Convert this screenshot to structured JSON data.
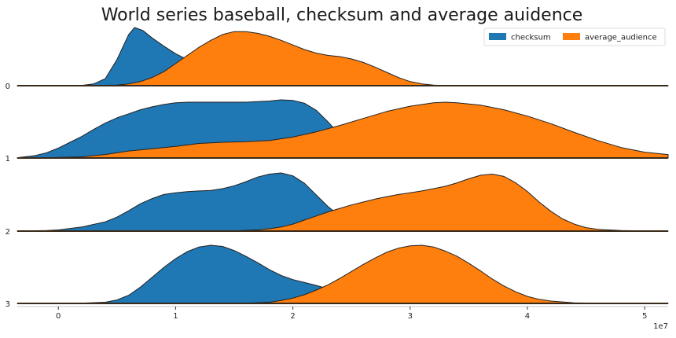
{
  "chart_data": {
    "type": "area",
    "title": "World series baseball, checksum and average auidence",
    "x_ticks": [
      "0",
      "1",
      "2",
      "3",
      "4",
      "5"
    ],
    "x_tick_values": [
      0,
      1,
      2,
      3,
      4,
      5
    ],
    "x_scale_label": "1e7",
    "xlim": [
      -0.35,
      5.2
    ],
    "row_labels": [
      "0",
      "1",
      "2",
      "3"
    ],
    "legend": {
      "placement": "top-right",
      "entries": [
        "checksum",
        "average_audience"
      ]
    },
    "colors": {
      "checksum": "#1f77b4",
      "average_audience": "#ff7f0e",
      "edge": "#222222",
      "baseline": "#3a2a1a"
    },
    "series": [
      {
        "name": "checksum",
        "rows": [
          [
            [
              -0.35,
              0
            ],
            [
              0.2,
              0.005
            ],
            [
              0.3,
              0.03
            ],
            [
              0.4,
              0.12
            ],
            [
              0.5,
              0.45
            ],
            [
              0.6,
              0.88
            ],
            [
              0.65,
              1
            ],
            [
              0.72,
              0.95
            ],
            [
              0.8,
              0.82
            ],
            [
              0.9,
              0.68
            ],
            [
              1.0,
              0.55
            ],
            [
              1.1,
              0.45
            ],
            [
              1.2,
              0.37
            ],
            [
              1.3,
              0.28
            ],
            [
              1.4,
              0.22
            ],
            [
              1.5,
              0.17
            ],
            [
              1.7,
              0.13
            ],
            [
              1.9,
              0.12
            ],
            [
              2.0,
              0.1
            ],
            [
              2.2,
              0.08
            ],
            [
              2.4,
              0.06
            ],
            [
              2.6,
              0.03
            ],
            [
              2.8,
              0.01
            ],
            [
              3.0,
              0
            ],
            [
              5.2,
              0
            ]
          ],
          [
            [
              -0.35,
              0.005
            ],
            [
              -0.2,
              0.04
            ],
            [
              -0.1,
              0.09
            ],
            [
              0,
              0.17
            ],
            [
              0.1,
              0.27
            ],
            [
              0.2,
              0.37
            ],
            [
              0.3,
              0.49
            ],
            [
              0.4,
              0.6
            ],
            [
              0.5,
              0.69
            ],
            [
              0.6,
              0.76
            ],
            [
              0.7,
              0.83
            ],
            [
              0.8,
              0.88
            ],
            [
              0.9,
              0.92
            ],
            [
              1.0,
              0.95
            ],
            [
              1.1,
              0.96
            ],
            [
              1.2,
              0.96
            ],
            [
              1.3,
              0.96
            ],
            [
              1.4,
              0.96
            ],
            [
              1.5,
              0.96
            ],
            [
              1.6,
              0.96
            ],
            [
              1.7,
              0.97
            ],
            [
              1.8,
              0.98
            ],
            [
              1.9,
              1.0
            ],
            [
              2.0,
              0.99
            ],
            [
              2.1,
              0.94
            ],
            [
              2.2,
              0.82
            ],
            [
              2.3,
              0.62
            ],
            [
              2.4,
              0.4
            ],
            [
              2.5,
              0.22
            ],
            [
              2.6,
              0.1
            ],
            [
              2.7,
              0.04
            ],
            [
              2.8,
              0.01
            ],
            [
              2.9,
              0
            ],
            [
              5.2,
              0
            ]
          ],
          [
            [
              -0.35,
              0
            ],
            [
              -0.1,
              0.01
            ],
            [
              0,
              0.02
            ],
            [
              0.2,
              0.07
            ],
            [
              0.4,
              0.16
            ],
            [
              0.5,
              0.24
            ],
            [
              0.6,
              0.35
            ],
            [
              0.7,
              0.47
            ],
            [
              0.8,
              0.56
            ],
            [
              0.9,
              0.63
            ],
            [
              1.0,
              0.66
            ],
            [
              1.1,
              0.68
            ],
            [
              1.2,
              0.69
            ],
            [
              1.3,
              0.7
            ],
            [
              1.4,
              0.73
            ],
            [
              1.5,
              0.78
            ],
            [
              1.6,
              0.85
            ],
            [
              1.7,
              0.93
            ],
            [
              1.8,
              0.98
            ],
            [
              1.9,
              1.0
            ],
            [
              2.0,
              0.95
            ],
            [
              2.1,
              0.82
            ],
            [
              2.2,
              0.62
            ],
            [
              2.3,
              0.42
            ],
            [
              2.4,
              0.26
            ],
            [
              2.5,
              0.14
            ],
            [
              2.6,
              0.06
            ],
            [
              2.7,
              0.02
            ],
            [
              2.8,
              0
            ],
            [
              5.2,
              0
            ]
          ],
          [
            [
              -0.35,
              0
            ],
            [
              0.2,
              0.005
            ],
            [
              0.4,
              0.02
            ],
            [
              0.5,
              0.06
            ],
            [
              0.6,
              0.14
            ],
            [
              0.7,
              0.28
            ],
            [
              0.8,
              0.45
            ],
            [
              0.9,
              0.62
            ],
            [
              1.0,
              0.77
            ],
            [
              1.1,
              0.89
            ],
            [
              1.2,
              0.97
            ],
            [
              1.3,
              1.0
            ],
            [
              1.4,
              0.98
            ],
            [
              1.5,
              0.91
            ],
            [
              1.6,
              0.81
            ],
            [
              1.7,
              0.7
            ],
            [
              1.8,
              0.58
            ],
            [
              1.9,
              0.48
            ],
            [
              2.0,
              0.41
            ],
            [
              2.1,
              0.36
            ],
            [
              2.2,
              0.31
            ],
            [
              2.3,
              0.25
            ],
            [
              2.4,
              0.18
            ],
            [
              2.5,
              0.11
            ],
            [
              2.6,
              0.06
            ],
            [
              2.7,
              0.02
            ],
            [
              2.8,
              0
            ],
            [
              5.2,
              0
            ]
          ]
        ]
      },
      {
        "name": "average_audience",
        "rows": [
          [
            [
              -0.35,
              0
            ],
            [
              0.3,
              0.003
            ],
            [
              0.5,
              0.01
            ],
            [
              0.6,
              0.03
            ],
            [
              0.7,
              0.07
            ],
            [
              0.8,
              0.14
            ],
            [
              0.9,
              0.24
            ],
            [
              1.0,
              0.38
            ],
            [
              1.1,
              0.52
            ],
            [
              1.2,
              0.66
            ],
            [
              1.3,
              0.78
            ],
            [
              1.4,
              0.88
            ],
            [
              1.5,
              0.93
            ],
            [
              1.6,
              0.93
            ],
            [
              1.7,
              0.9
            ],
            [
              1.8,
              0.85
            ],
            [
              1.9,
              0.78
            ],
            [
              2.0,
              0.7
            ],
            [
              2.1,
              0.62
            ],
            [
              2.2,
              0.56
            ],
            [
              2.3,
              0.52
            ],
            [
              2.4,
              0.5
            ],
            [
              2.5,
              0.46
            ],
            [
              2.6,
              0.4
            ],
            [
              2.7,
              0.32
            ],
            [
              2.8,
              0.23
            ],
            [
              2.9,
              0.14
            ],
            [
              3.0,
              0.07
            ],
            [
              3.1,
              0.03
            ],
            [
              3.2,
              0.01
            ],
            [
              3.3,
              0
            ],
            [
              5.2,
              0
            ]
          ],
          [
            [
              -0.35,
              0
            ],
            [
              -0.1,
              0.002
            ],
            [
              0,
              0.01
            ],
            [
              0.2,
              0.02
            ],
            [
              0.4,
              0.06
            ],
            [
              0.6,
              0.12
            ],
            [
              0.8,
              0.16
            ],
            [
              1.0,
              0.2
            ],
            [
              1.2,
              0.25
            ],
            [
              1.4,
              0.27
            ],
            [
              1.6,
              0.28
            ],
            [
              1.8,
              0.3
            ],
            [
              2.0,
              0.36
            ],
            [
              2.2,
              0.45
            ],
            [
              2.4,
              0.56
            ],
            [
              2.6,
              0.68
            ],
            [
              2.8,
              0.8
            ],
            [
              3.0,
              0.89
            ],
            [
              3.2,
              0.95
            ],
            [
              3.3,
              0.96
            ],
            [
              3.4,
              0.95
            ],
            [
              3.6,
              0.91
            ],
            [
              3.8,
              0.83
            ],
            [
              4.0,
              0.72
            ],
            [
              4.2,
              0.59
            ],
            [
              4.4,
              0.44
            ],
            [
              4.6,
              0.3
            ],
            [
              4.8,
              0.18
            ],
            [
              5.0,
              0.1
            ],
            [
              5.2,
              0.06
            ]
          ],
          [
            [
              -0.35,
              0
            ],
            [
              1.5,
              0.005
            ],
            [
              1.7,
              0.02
            ],
            [
              1.8,
              0.04
            ],
            [
              1.9,
              0.07
            ],
            [
              2.0,
              0.12
            ],
            [
              2.1,
              0.19
            ],
            [
              2.2,
              0.26
            ],
            [
              2.3,
              0.33
            ],
            [
              2.4,
              0.39
            ],
            [
              2.5,
              0.45
            ],
            [
              2.6,
              0.5
            ],
            [
              2.7,
              0.55
            ],
            [
              2.8,
              0.59
            ],
            [
              2.9,
              0.63
            ],
            [
              3.0,
              0.66
            ],
            [
              3.1,
              0.69
            ],
            [
              3.2,
              0.73
            ],
            [
              3.3,
              0.77
            ],
            [
              3.4,
              0.83
            ],
            [
              3.5,
              0.9
            ],
            [
              3.6,
              0.96
            ],
            [
              3.7,
              0.98
            ],
            [
              3.8,
              0.94
            ],
            [
              3.9,
              0.83
            ],
            [
              4.0,
              0.68
            ],
            [
              4.1,
              0.5
            ],
            [
              4.2,
              0.34
            ],
            [
              4.3,
              0.21
            ],
            [
              4.4,
              0.12
            ],
            [
              4.5,
              0.06
            ],
            [
              4.6,
              0.03
            ],
            [
              4.8,
              0.01
            ],
            [
              5.0,
              0.003
            ],
            [
              5.2,
              0
            ]
          ],
          [
            [
              -0.35,
              0
            ],
            [
              1.6,
              0.005
            ],
            [
              1.8,
              0.02
            ],
            [
              1.9,
              0.05
            ],
            [
              2.0,
              0.09
            ],
            [
              2.1,
              0.15
            ],
            [
              2.2,
              0.23
            ],
            [
              2.3,
              0.32
            ],
            [
              2.4,
              0.43
            ],
            [
              2.5,
              0.55
            ],
            [
              2.6,
              0.67
            ],
            [
              2.7,
              0.78
            ],
            [
              2.8,
              0.88
            ],
            [
              2.9,
              0.95
            ],
            [
              3.0,
              0.99
            ],
            [
              3.1,
              1.0
            ],
            [
              3.2,
              0.97
            ],
            [
              3.3,
              0.9
            ],
            [
              3.4,
              0.81
            ],
            [
              3.5,
              0.69
            ],
            [
              3.6,
              0.56
            ],
            [
              3.7,
              0.42
            ],
            [
              3.8,
              0.3
            ],
            [
              3.9,
              0.2
            ],
            [
              4.0,
              0.12
            ],
            [
              4.1,
              0.07
            ],
            [
              4.2,
              0.04
            ],
            [
              4.4,
              0.01
            ],
            [
              4.6,
              0.003
            ],
            [
              5.2,
              0
            ]
          ]
        ]
      }
    ]
  }
}
